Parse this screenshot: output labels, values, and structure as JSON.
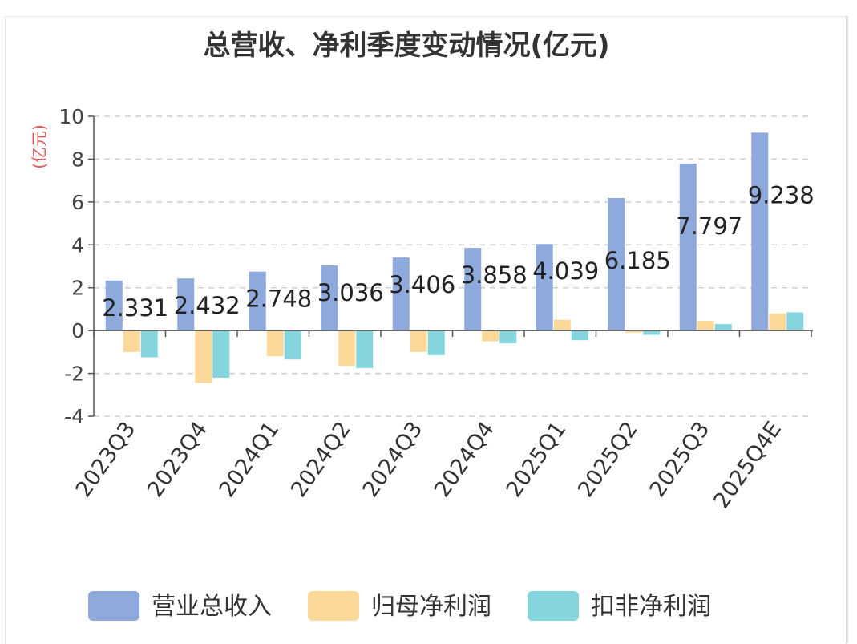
{
  "chart_data": {
    "type": "bar",
    "title": "总营收、净利季度变动情况(亿元)",
    "ylabel": "(亿元)",
    "xlabel": "",
    "ylim": [
      -4,
      10
    ],
    "yticks": [
      10,
      8,
      6,
      4,
      2,
      0,
      -2,
      -4
    ],
    "grid": true,
    "legend_position": "bottom",
    "categories": [
      "2023Q3",
      "2023Q4",
      "2024Q1",
      "2024Q2",
      "2024Q3",
      "2024Q4",
      "2025Q1",
      "2025Q2",
      "2025Q3",
      "2025Q4E"
    ],
    "series": [
      {
        "name": "营业总收入",
        "color": "#8ea9db",
        "values": [
          2.331,
          2.432,
          2.748,
          3.036,
          3.406,
          3.858,
          4.039,
          6.185,
          7.797,
          9.238
        ],
        "labels": [
          "2.331",
          "2.432",
          "2.748",
          "3.036",
          "3.406",
          "3.858",
          "4.039",
          "6.185",
          "7.797",
          "9.238"
        ]
      },
      {
        "name": "归母净利润",
        "color": "#fdd999",
        "values": [
          -1.0,
          -2.45,
          -1.2,
          -1.65,
          -1.0,
          -0.5,
          0.5,
          -0.1,
          0.45,
          0.8
        ]
      },
      {
        "name": "扣非净利润",
        "color": "#84d5dd",
        "values": [
          -1.25,
          -2.2,
          -1.35,
          -1.75,
          -1.15,
          -0.6,
          -0.45,
          -0.2,
          0.3,
          0.85
        ]
      }
    ]
  }
}
